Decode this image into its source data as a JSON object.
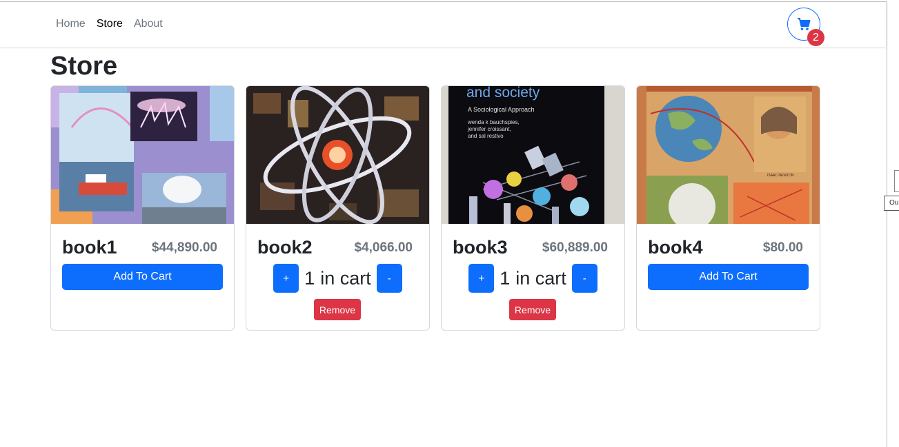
{
  "nav": {
    "links": [
      "Home",
      "Store",
      "About"
    ],
    "active": "Store"
  },
  "cart": {
    "count": "2"
  },
  "page": {
    "title": "Store"
  },
  "products": [
    {
      "name": "book1",
      "price": "$44,890.00",
      "add_label": "Add To Cart"
    },
    {
      "name": "book2",
      "price": "$4,066.00",
      "plus_label": "+",
      "quantity": "1",
      "in_cart_label": "in cart",
      "minus_label": "-",
      "remove_label": "Remove"
    },
    {
      "name": "book3",
      "price": "$60,889.00",
      "plus_label": "+",
      "quantity": "1",
      "in_cart_label": "in cart",
      "minus_label": "-",
      "remove_label": "Remove",
      "cover_text": {
        "title": "and society",
        "subtitle": "A Sociological Approach",
        "authors": [
          "wenda k bauchspies,",
          "jennifer croissant,",
          "and sal restivo"
        ]
      }
    },
    {
      "name": "book4",
      "price": "$80.00",
      "add_label": "Add To Cart",
      "cover_text": {
        "caption": "ISAAC NEWTON"
      }
    }
  ],
  "edge_tooltip": "Ou",
  "colors": {
    "primary": "#0d6efd",
    "danger": "#dc3545",
    "muted": "#6c757d"
  }
}
